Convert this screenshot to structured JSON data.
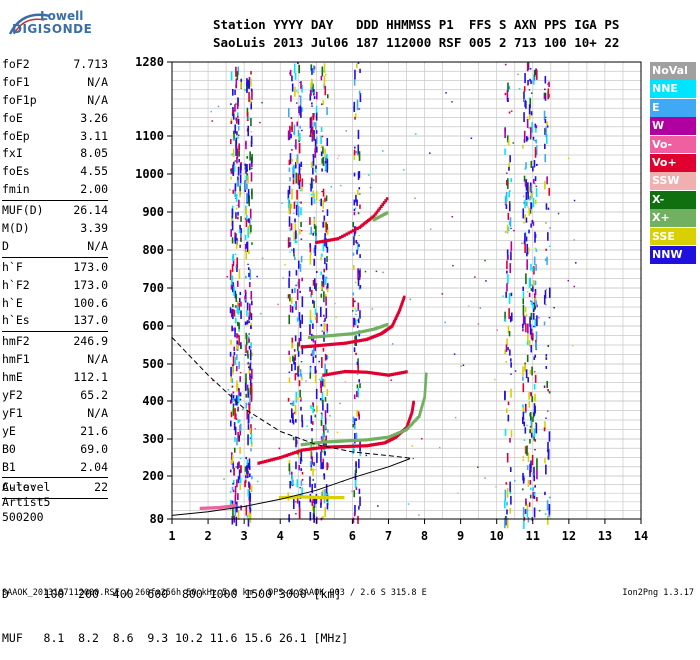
{
  "logo": {
    "line1": "Lowell",
    "line2": "DIGISONDE"
  },
  "header": {
    "row1": "Station YYYY DAY   DDD HHMMSS P1  FFS S AXN PPS IGA PS",
    "row2": "SaoLuis 2013 Jul06 187 112000 RSF 005 2 713 100 10+ 22"
  },
  "params_group1": [
    {
      "name": "foF2",
      "value": "7.713"
    },
    {
      "name": "foF1",
      "value": "N/A"
    },
    {
      "name": "foF1p",
      "value": "N/A"
    },
    {
      "name": "foE",
      "value": "3.26"
    },
    {
      "name": "foEp",
      "value": "3.11"
    },
    {
      "name": "fxI",
      "value": "8.05"
    },
    {
      "name": "foEs",
      "value": "4.55"
    },
    {
      "name": "fmin",
      "value": "2.00"
    }
  ],
  "params_group2": [
    {
      "name": "MUF(D)",
      "value": "26.14"
    },
    {
      "name": "M(D)",
      "value": "3.39"
    },
    {
      "name": "D",
      "value": "N/A"
    }
  ],
  "params_group3": [
    {
      "name": "h`F",
      "value": "173.0"
    },
    {
      "name": "h`F2",
      "value": "173.0"
    },
    {
      "name": "h`E",
      "value": "100.6"
    },
    {
      "name": "h`Es",
      "value": "137.0"
    }
  ],
  "params_group4": [
    {
      "name": "hmF2",
      "value": "246.9"
    },
    {
      "name": "hmF1",
      "value": "N/A"
    },
    {
      "name": "hmE",
      "value": "112.1"
    },
    {
      "name": "yF2",
      "value": "65.2"
    },
    {
      "name": "yF1",
      "value": "N/A"
    },
    {
      "name": "yE",
      "value": "21.6"
    },
    {
      "name": "B0",
      "value": "69.0"
    },
    {
      "name": "B1",
      "value": "2.04"
    }
  ],
  "clevel": {
    "name": "C-level",
    "value": "22"
  },
  "auto": {
    "line1": "Auto:",
    "line2": "Artist5",
    "line3": "500200"
  },
  "muf_table": {
    "row1": "D     100  200  400  600  800 1000 1500 3000 [km]",
    "row2": "MUF   8.1  8.2  8.6  9.3 10.2 11.6 15.6 26.1 [MHz]"
  },
  "footer": "SAAOK_2013187112000.RSF / 260fx256h 50 kHz 5.0 km / DPS-4 SAAOK 903 / 2.6 S 315.8 E",
  "version": "Ion2Png 1.3.17",
  "legend": [
    {
      "label": "NoVal",
      "color": "#a0a0a0"
    },
    {
      "label": "NNE",
      "color": "#00e5ff"
    },
    {
      "label": "E",
      "color": "#3fa9f5"
    },
    {
      "label": "W",
      "color": "#b000a0"
    },
    {
      "label": "Vo-",
      "color": "#f060a0"
    },
    {
      "label": "Vo+",
      "color": "#e00030"
    },
    {
      "label": "SSW",
      "color": "#f0b0b0"
    },
    {
      "label": "X-",
      "color": "#107010"
    },
    {
      "label": "X+",
      "color": "#70b060"
    },
    {
      "label": "SSE",
      "color": "#d8d000"
    },
    {
      "label": "NNW",
      "color": "#2010e0"
    }
  ],
  "chart_data": {
    "type": "scatter",
    "title": "",
    "xlabel": "",
    "ylabel": "",
    "xlim": [
      1,
      14
    ],
    "ylim": [
      80,
      1280
    ],
    "x_ticks": [
      "1",
      "2",
      "3",
      "4",
      "5",
      "6",
      "7",
      "8",
      "9",
      "10",
      "11",
      "12",
      "13",
      "14"
    ],
    "y_ticks": [
      "80",
      "200",
      "300",
      "400",
      "500",
      "600",
      "700",
      "800",
      "900",
      "1000",
      "1100",
      "1280"
    ],
    "grid": true,
    "legend_position": "right",
    "traces": [
      {
        "name": "Vo+",
        "color": "#e00030",
        "points": [
          [
            3.4,
            235
          ],
          [
            4.0,
            250
          ],
          [
            4.6,
            270
          ],
          [
            5.2,
            278
          ],
          [
            5.8,
            280
          ],
          [
            6.4,
            282
          ],
          [
            6.9,
            290
          ],
          [
            7.2,
            305
          ],
          [
            7.5,
            330
          ],
          [
            7.65,
            370
          ],
          [
            7.7,
            400
          ]
        ]
      },
      {
        "name": "X+",
        "color": "#70b060",
        "points": [
          [
            4.6,
            285
          ],
          [
            5.2,
            292
          ],
          [
            5.8,
            295
          ],
          [
            6.4,
            298
          ],
          [
            7.0,
            305
          ],
          [
            7.5,
            325
          ],
          [
            7.85,
            360
          ],
          [
            8.0,
            410
          ],
          [
            8.05,
            480
          ]
        ]
      },
      {
        "name": "Vo+",
        "color": "#e00030",
        "points": [
          [
            4.6,
            545
          ],
          [
            5.2,
            550
          ],
          [
            5.8,
            555
          ],
          [
            6.4,
            565
          ],
          [
            6.8,
            580
          ],
          [
            7.1,
            600
          ],
          [
            7.3,
            640
          ],
          [
            7.45,
            680
          ]
        ]
      },
      {
        "name": "X+",
        "color": "#70b060",
        "points": [
          [
            4.8,
            570
          ],
          [
            5.4,
            575
          ],
          [
            6.0,
            580
          ],
          [
            6.6,
            592
          ],
          [
            7.0,
            605
          ]
        ]
      },
      {
        "name": "Vo+",
        "color": "#e00030",
        "points": [
          [
            5.0,
            820
          ],
          [
            5.6,
            830
          ],
          [
            6.2,
            860
          ],
          [
            6.6,
            890
          ],
          [
            7.0,
            940
          ]
        ]
      },
      {
        "name": "X+",
        "color": "#70b060",
        "points": [
          [
            6.6,
            880
          ],
          [
            7.0,
            900
          ]
        ]
      },
      {
        "name": "Vo+",
        "color": "#e00030",
        "points": [
          [
            5.2,
            470
          ],
          [
            5.8,
            480
          ],
          [
            6.4,
            478
          ],
          [
            7.0,
            470
          ],
          [
            7.55,
            480
          ]
        ]
      },
      {
        "name": "SSE",
        "color": "#d8d000",
        "points": [
          [
            4.0,
            140
          ],
          [
            4.6,
            142
          ],
          [
            5.2,
            140
          ],
          [
            5.8,
            140
          ]
        ]
      },
      {
        "name": "Vo-",
        "color": "#f060a0",
        "points": [
          [
            1.8,
            110
          ],
          [
            2.3,
            112
          ],
          [
            2.8,
            118
          ]
        ]
      }
    ],
    "profile_dashed": [
      [
        1,
        570
      ],
      [
        2,
        470
      ],
      [
        3,
        380
      ],
      [
        4,
        320
      ],
      [
        5,
        285
      ],
      [
        6,
        265
      ],
      [
        7,
        255
      ],
      [
        7.7,
        247
      ]
    ],
    "profile_solid": [
      [
        1,
        90
      ],
      [
        2,
        100
      ],
      [
        3,
        115
      ],
      [
        4,
        135
      ],
      [
        5,
        160
      ],
      [
        6,
        195
      ],
      [
        7,
        225
      ],
      [
        7.6,
        247
      ]
    ]
  }
}
